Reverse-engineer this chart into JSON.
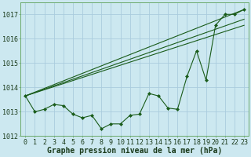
{
  "xlabel": "Graphe pression niveau de la mer (hPa)",
  "background_color": "#cce8f0",
  "grid_color": "#aaccdd",
  "line_color": "#1a5c1a",
  "marker_color": "#1a5c1a",
  "x_values": [
    0,
    1,
    2,
    3,
    4,
    5,
    6,
    7,
    8,
    9,
    10,
    11,
    12,
    13,
    14,
    15,
    16,
    17,
    18,
    19,
    20,
    21,
    22,
    23
  ],
  "series_main": [
    1013.65,
    1013.0,
    1013.1,
    1013.3,
    1013.25,
    1012.9,
    1012.75,
    1012.85,
    1012.3,
    1012.5,
    1012.5,
    1012.85,
    1012.9,
    1013.75,
    1013.65,
    1013.15,
    1013.1,
    1014.45,
    1015.5,
    1014.3,
    1016.55,
    1017.0,
    1017.0,
    1017.2
  ],
  "trend1_x": [
    0,
    23
  ],
  "trend1_y": [
    1013.65,
    1017.2
  ],
  "trend2_x": [
    0,
    23
  ],
  "trend2_y": [
    1013.65,
    1016.55
  ],
  "trend3_x": [
    0,
    23
  ],
  "trend3_y": [
    1013.65,
    1016.8
  ],
  "ylim": [
    1012.0,
    1017.5
  ],
  "yticks": [
    1012,
    1013,
    1014,
    1015,
    1016,
    1017
  ],
  "xticks": [
    0,
    1,
    2,
    3,
    4,
    5,
    6,
    7,
    8,
    9,
    10,
    11,
    12,
    13,
    14,
    15,
    16,
    17,
    18,
    19,
    20,
    21,
    22,
    23
  ],
  "xtick_labels": [
    "0",
    "1",
    "2",
    "3",
    "4",
    "5",
    "6",
    "7",
    "8",
    "9",
    "10",
    "11",
    "12",
    "13",
    "14",
    "15",
    "16",
    "17",
    "18",
    "19",
    "20",
    "21",
    "22",
    "23"
  ],
  "font_size_xlabel": 7.0,
  "font_size_ticks": 6.0,
  "marker_size": 2.0,
  "line_width": 0.8
}
